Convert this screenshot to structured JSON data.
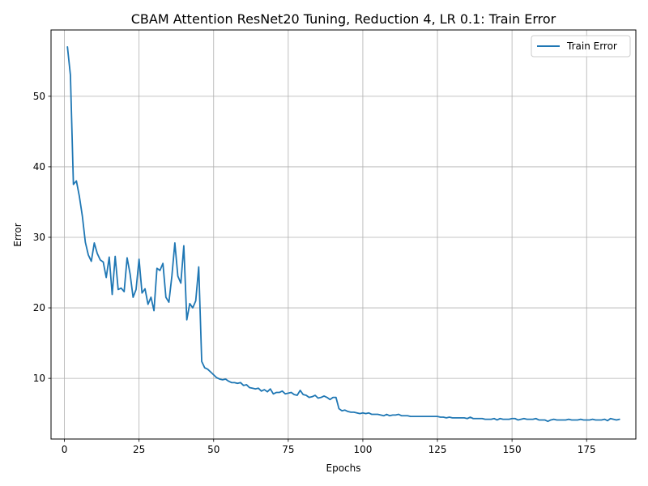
{
  "chart_data": {
    "type": "line",
    "title": "CBAM Attention ResNet20 Tuning, Reduction 4, LR 0.1: Train Error",
    "xlabel": "Epochs",
    "ylabel": "Error",
    "xlim": [
      -4.5,
      191.5
    ],
    "ylim": [
      1.4,
      59.4
    ],
    "x_ticks": [
      0,
      25,
      50,
      75,
      100,
      125,
      150,
      175
    ],
    "y_ticks": [
      10,
      20,
      30,
      40,
      50
    ],
    "grid": true,
    "legend_position": "top-right",
    "series": [
      {
        "name": "Train Error",
        "color": "#1f77b4",
        "y_start_epoch": 1,
        "values": [
          57.0,
          53.0,
          37.5,
          38.0,
          35.8,
          33.0,
          29.3,
          27.5,
          26.6,
          29.2,
          27.7,
          26.8,
          26.5,
          24.3,
          27.2,
          21.9,
          27.3,
          22.6,
          22.8,
          22.3,
          27.1,
          24.8,
          21.5,
          22.6,
          26.9,
          22.1,
          22.7,
          20.5,
          21.5,
          19.6,
          25.6,
          25.3,
          26.3,
          21.5,
          20.8,
          24.5,
          29.2,
          24.5,
          23.5,
          28.8,
          18.3,
          20.6,
          20.0,
          21.0,
          25.8,
          12.4,
          11.5,
          11.3,
          10.9,
          10.5,
          10.1,
          9.9,
          9.8,
          9.9,
          9.6,
          9.4,
          9.4,
          9.3,
          9.4,
          9.0,
          9.1,
          8.7,
          8.6,
          8.5,
          8.6,
          8.2,
          8.4,
          8.1,
          8.5,
          7.8,
          8.0,
          8.0,
          8.2,
          7.8,
          7.9,
          8.0,
          7.7,
          7.6,
          8.3,
          7.7,
          7.6,
          7.3,
          7.4,
          7.6,
          7.2,
          7.3,
          7.5,
          7.3,
          7.0,
          7.3,
          7.3,
          5.7,
          5.4,
          5.5,
          5.3,
          5.2,
          5.2,
          5.1,
          5.0,
          5.1,
          5.0,
          5.1,
          4.9,
          4.9,
          4.9,
          4.8,
          4.7,
          4.9,
          4.7,
          4.8,
          4.8,
          4.9,
          4.7,
          4.7,
          4.7,
          4.6,
          4.6,
          4.6,
          4.6,
          4.6,
          4.6,
          4.6,
          4.6,
          4.6,
          4.6,
          4.5,
          4.5,
          4.4,
          4.5,
          4.4,
          4.4,
          4.4,
          4.4,
          4.4,
          4.3,
          4.5,
          4.3,
          4.3,
          4.3,
          4.3,
          4.2,
          4.2,
          4.2,
          4.3,
          4.1,
          4.3,
          4.2,
          4.2,
          4.2,
          4.3,
          4.3,
          4.1,
          4.2,
          4.3,
          4.2,
          4.2,
          4.2,
          4.3,
          4.1,
          4.1,
          4.1,
          3.9,
          4.1,
          4.2,
          4.1,
          4.1,
          4.1,
          4.1,
          4.2,
          4.1,
          4.1,
          4.1,
          4.2,
          4.1,
          4.1,
          4.1,
          4.2,
          4.1,
          4.1,
          4.1,
          4.2,
          4.0,
          4.3,
          4.2,
          4.1,
          4.2
        ]
      }
    ]
  }
}
